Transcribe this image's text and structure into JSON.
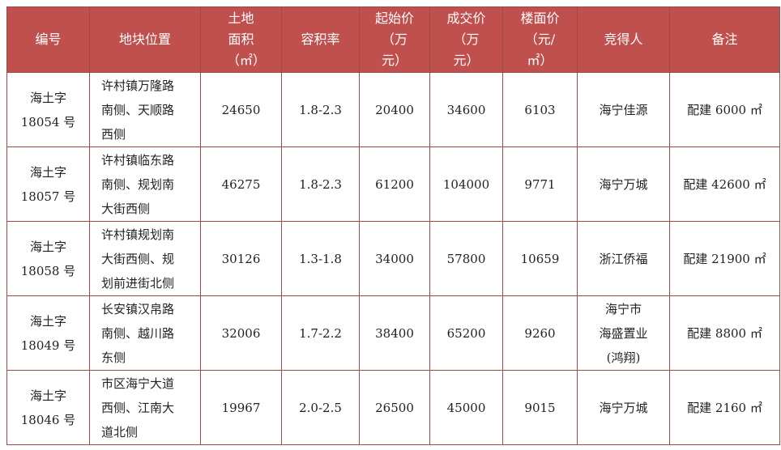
{
  "headers": [
    "编号",
    "地块位置",
    "土地面积（㎡）",
    "容积率",
    "起始价（万元）",
    "成交价（万元）",
    "楼面价（元/㎡）",
    "竞得人",
    "备注"
  ],
  "header_lines": [
    [
      "编号"
    ],
    [
      "地块位置"
    ],
    [
      "土地",
      "面积",
      "（㎡）"
    ],
    [
      "容积率"
    ],
    [
      "起始价",
      "（万元）"
    ],
    [
      "成交价",
      "（万元）"
    ],
    [
      "楼面价",
      "（元/㎡）"
    ],
    [
      "竞得人"
    ],
    [
      "备注"
    ]
  ],
  "rows": [
    {
      "id": [
        "海土字",
        "18054 号"
      ],
      "location": [
        "许村镇万隆路",
        "南侧、天顺路",
        "西侧"
      ],
      "area": "24650",
      "far": "1.8-2.3",
      "start": "20400",
      "deal": "34600",
      "floor_price": "6103",
      "winner": [
        "海宁佳源"
      ],
      "note": "配建 6000 ㎡"
    },
    {
      "id": [
        "海土字",
        "18057 号"
      ],
      "location": [
        "许村镇临东路",
        "南侧、规划南",
        "大街西侧"
      ],
      "area": "46275",
      "far": "1.8-2.3",
      "start": "61200",
      "deal": "104000",
      "floor_price": "9771",
      "winner": [
        "海宁万城"
      ],
      "note": "配建 42600 ㎡"
    },
    {
      "id": [
        "海土字",
        "18058 号"
      ],
      "location": [
        "许村镇规划南",
        "大街西侧、规",
        "划前进街北侧"
      ],
      "area": "30126",
      "far": "1.3-1.8",
      "start": "34000",
      "deal": "57800",
      "floor_price": "10659",
      "winner": [
        "浙江侨福"
      ],
      "note": "配建 21900 ㎡"
    },
    {
      "id": [
        "海土字",
        "18049 号"
      ],
      "location": [
        "长安镇汉帛路",
        "南侧、越川路",
        "东侧"
      ],
      "area": "32006",
      "far": "1.7-2.2",
      "start": "38400",
      "deal": "65200",
      "floor_price": "9260",
      "winner": [
        "海宁市",
        "海盛置业",
        "(鸿翔)"
      ],
      "note": "配建 8800 ㎡"
    },
    {
      "id": [
        "海土字",
        "18046 号"
      ],
      "location": [
        "市区海宁大道",
        "西侧、江南大",
        "道北侧"
      ],
      "area": "19967",
      "far": "2.0-2.5",
      "start": "26500",
      "deal": "45000",
      "floor_price": "9015",
      "winner": [
        "海宁万城"
      ],
      "note": "配建 2160 ㎡"
    }
  ],
  "colors": {
    "header_bg": "#c0504d",
    "border": "#9e4a47"
  }
}
